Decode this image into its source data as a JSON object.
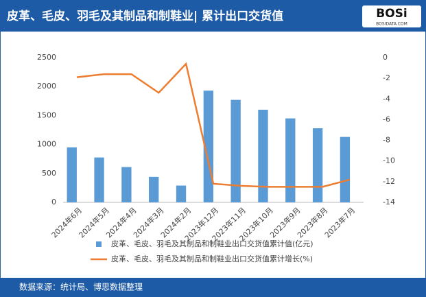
{
  "header": {
    "title": "皮革、毛皮、羽毛及其制品和制鞋业| 累计出口交货值",
    "logo": "BOSi",
    "logo_sub": "BOSIDATA.COM"
  },
  "footer": {
    "source": "数据来源：统计局、博思数据整理"
  },
  "chart_data": {
    "type": "bar",
    "categories": [
      "2024年6月",
      "2024年5月",
      "2024年4月",
      "2024年3月",
      "2024年2月",
      "2023年12月",
      "2023年11月",
      "2023年10月",
      "2023年9月",
      "2023年8月",
      "2023年7月"
    ],
    "series": [
      {
        "name": "皮革、毛皮、羽毛及其制品和制鞋业出口交货值累计值(亿元)",
        "color": "#5b9bd5",
        "type": "bar",
        "values": [
          950,
          775,
          610,
          440,
          290,
          1930,
          1770,
          1600,
          1450,
          1280,
          1130
        ]
      },
      {
        "name": "皮革、毛皮、羽毛及其制品和制鞋业出口交货值累计增长(%)",
        "color": "#ed7d31",
        "type": "line",
        "axis": "y2",
        "values": [
          -1.9,
          -1.6,
          -1.6,
          -3.4,
          -0.6,
          -12.2,
          -12.4,
          -12.5,
          -12.5,
          -12.5,
          -11.8
        ]
      }
    ],
    "ylim": [
      0,
      2500
    ],
    "yticks": [
      0,
      500,
      1000,
      1500,
      2000,
      2500
    ],
    "y2lim": [
      -14,
      0
    ],
    "y2ticks": [
      -14,
      -12,
      -10,
      -8,
      -6,
      -4,
      -2,
      0
    ]
  }
}
